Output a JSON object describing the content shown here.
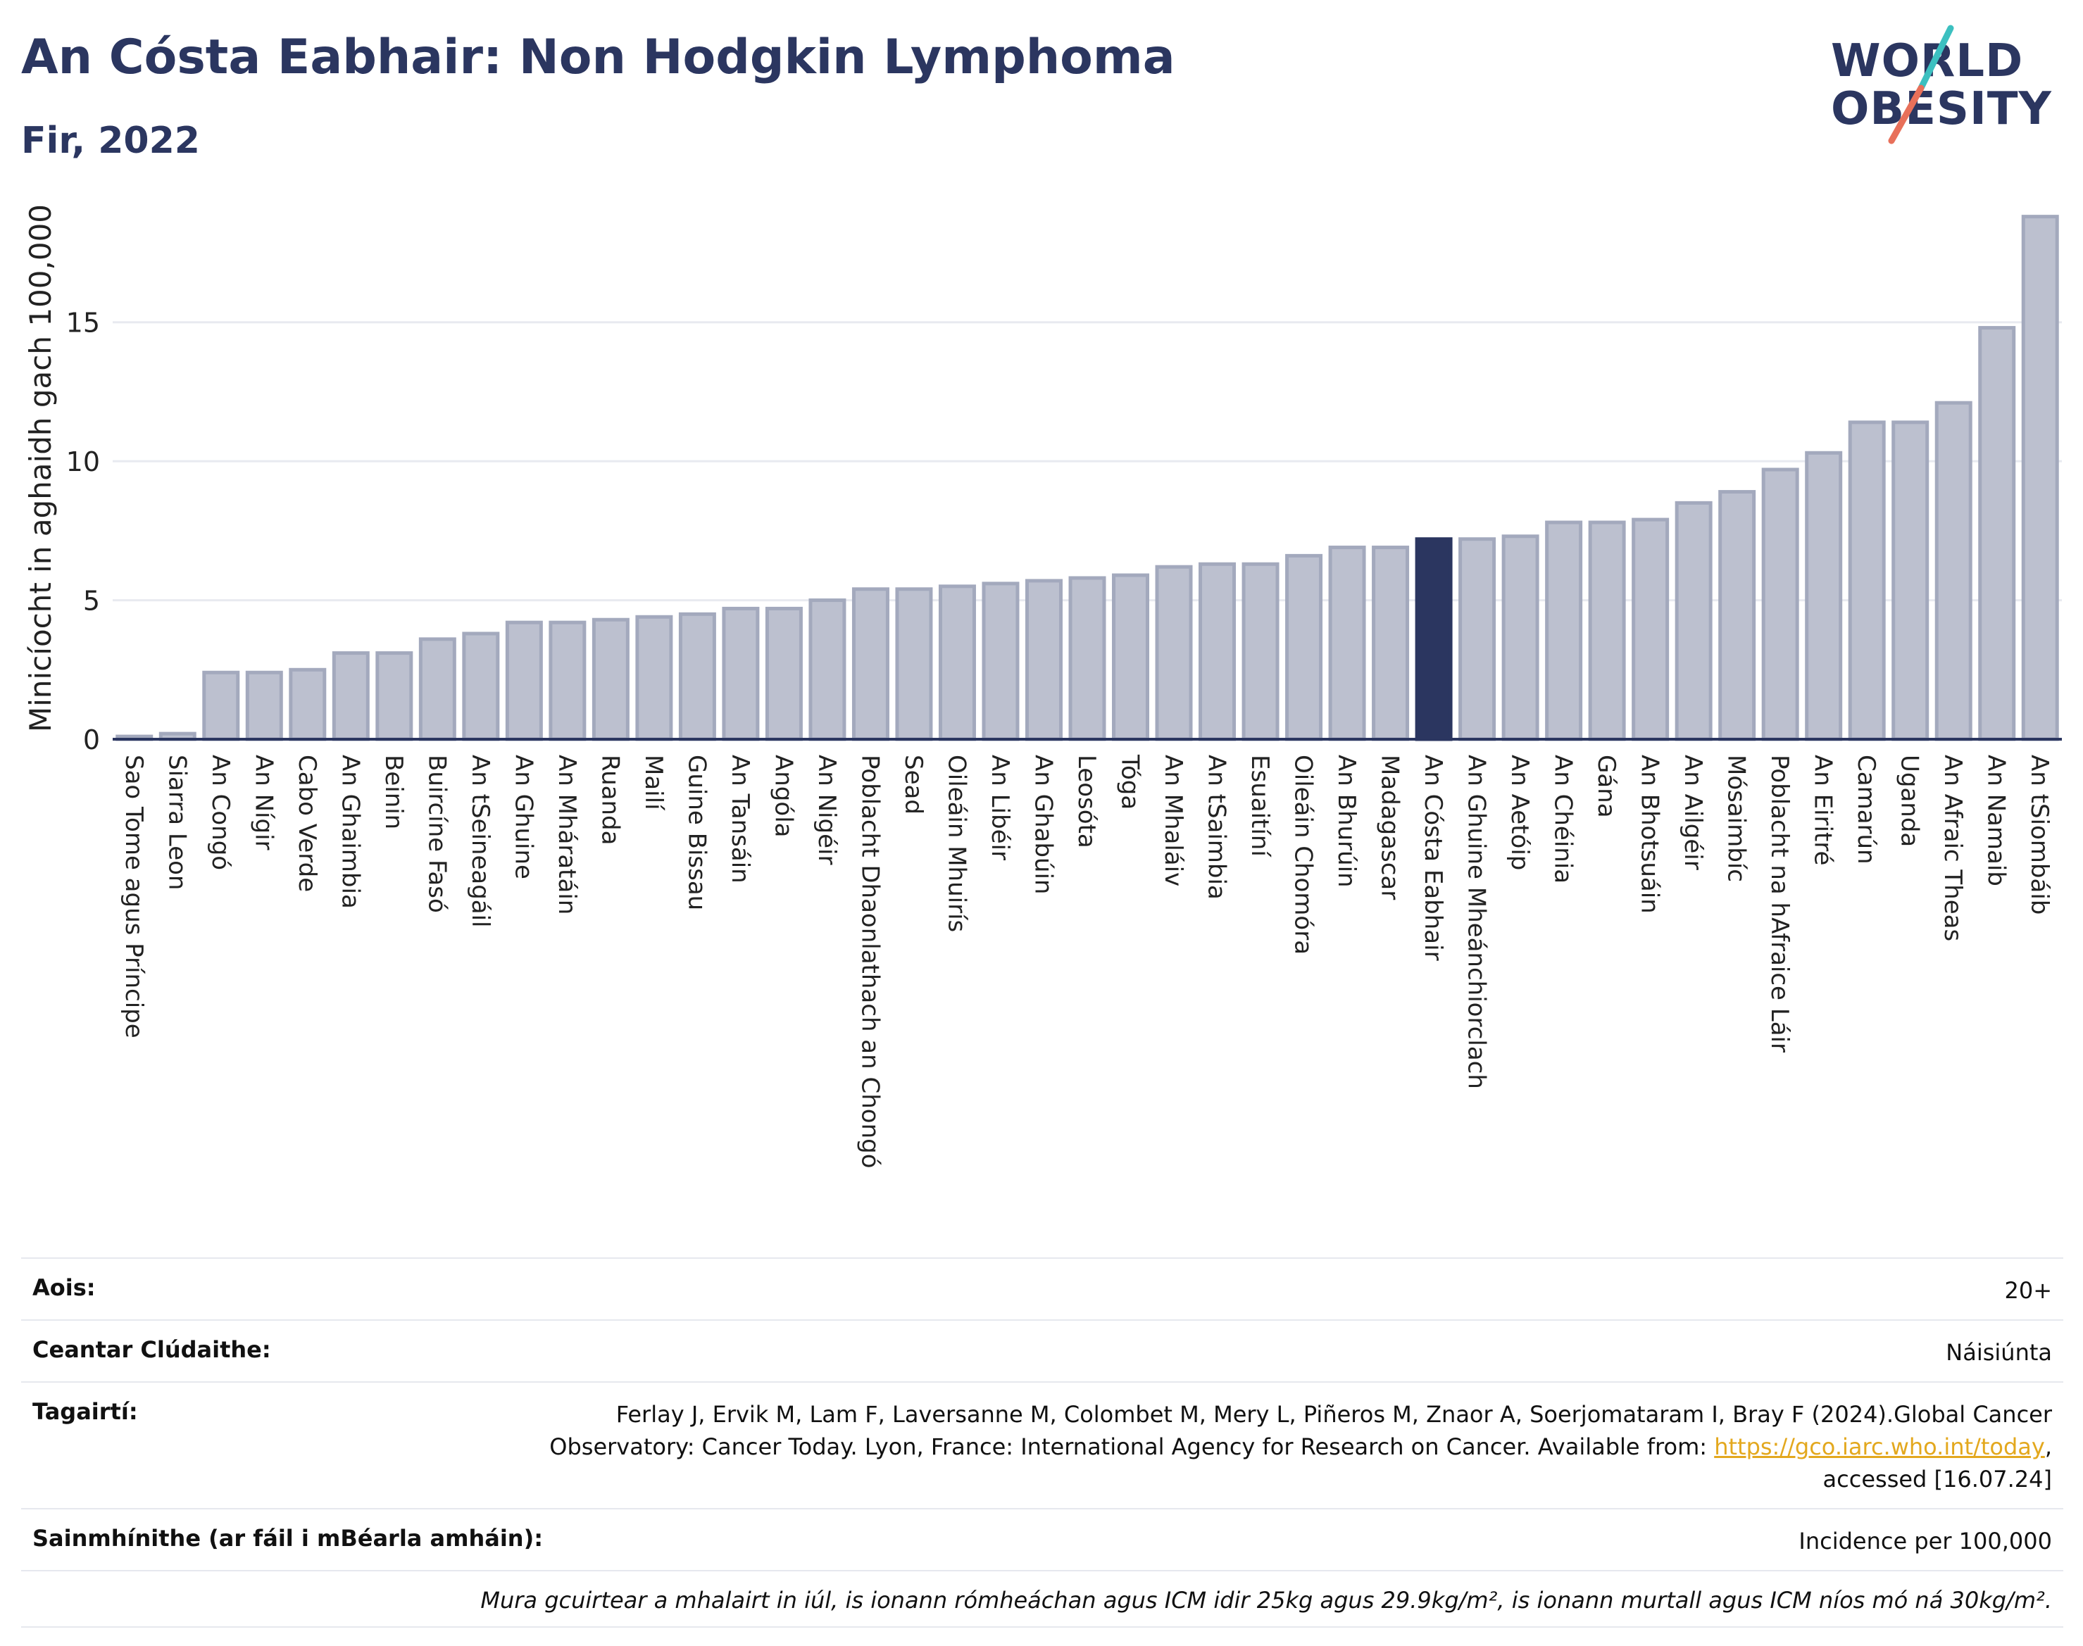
{
  "header": {
    "title": "An Cósta Eabhair: Non Hodgkin Lymphoma",
    "subtitle": "Fir, 2022"
  },
  "logo": {
    "line1": "WORLD",
    "line2": "OBESITY",
    "slash_color_top": "#3cc0c0",
    "slash_color_bottom": "#e8705a"
  },
  "colors": {
    "bar": "#bcc0cf",
    "bar_stroke": "#a3a9bd",
    "highlight": "#2b3660",
    "axis": "#2b3660",
    "grid": "#e8eaf0",
    "link": "#e3a81e"
  },
  "chart_data": {
    "type": "bar",
    "ylabel": "Minicíocht in aghaidh gach 100,000",
    "ylim": [
      0,
      19.5
    ],
    "yticks": [
      0,
      5,
      10,
      15
    ],
    "grid": true,
    "highlight": "An Cósta Eabhair",
    "categories": [
      "Sao Tome agus Príncipe",
      "Siarra Leon",
      "An Congó",
      "An Nígir",
      "Cabo Verde",
      "An Ghaimbia",
      "Beinin",
      "Buircíne Fasó",
      "An tSeineagáil",
      "An Ghuine",
      "An Mháratáin",
      "Ruanda",
      "Mailí",
      "Guine Bissau",
      "An Tansáin",
      "Angóla",
      "An Nigéir",
      "Poblacht Dhaonlathach an Chongó",
      "Sead",
      "Oileáin Mhuirís",
      "An Libéir",
      "An Ghabúin",
      "Leosóta",
      "Tóga",
      "An Mhaláiv",
      "An tSaimbia",
      "Esuaitíní",
      "Oileáin Chomóra",
      "An Bhurúin",
      "Madagascar",
      "An Cósta Eabhair",
      "An Ghuine Mheánchiorclach",
      "An Aetóip",
      "An Chéinia",
      "Gána",
      "An Bhotsuáin",
      "An Ailgéir",
      "Mósaimbíc",
      "Poblacht na hAfraice Láir",
      "An Eiritré",
      "Camarún",
      "Uganda",
      "An Afraic Theas",
      "An Namaib",
      "An tSiombáib"
    ],
    "values": [
      0.1,
      0.2,
      2.4,
      2.4,
      2.5,
      3.1,
      3.1,
      3.6,
      3.8,
      4.2,
      4.2,
      4.3,
      4.4,
      4.5,
      4.7,
      4.7,
      5.0,
      5.4,
      5.4,
      5.5,
      5.6,
      5.7,
      5.8,
      5.9,
      6.2,
      6.3,
      6.3,
      6.6,
      6.9,
      6.9,
      7.2,
      7.2,
      7.3,
      7.8,
      7.8,
      7.9,
      8.5,
      8.9,
      9.7,
      10.3,
      11.4,
      11.4,
      12.1,
      14.8,
      18.8
    ]
  },
  "info": {
    "age_label": "Aois:",
    "age_value": "20+",
    "area_label": "Ceantar Clúdaithe:",
    "area_value": "Náisiúnta",
    "ref_label": "Tagairtí:",
    "ref_text": "Ferlay J, Ervik M, Lam F, Laversanne M, Colombet M, Mery L, Piñeros M, Znaor A, Soerjomataram I, Bray F (2024).Global Cancer Observatory: Cancer Today. Lyon, France: International Agency for Research on Cancer. Available from: ",
    "ref_link": "https://gco.iarc.who.int/today",
    "ref_tail": ", accessed [16.07.24]",
    "def_label": "Sainmhínithe (ar fáil i mBéarla amháin):",
    "def_value": "Incidence per 100,000",
    "note": "Mura gcuirtear a mhalairt in iúl, is ionann rómheáchan agus ICM idir 25kg agus 29.9kg/m², is ionann murtall agus ICM níos mó ná 30kg/m²."
  }
}
